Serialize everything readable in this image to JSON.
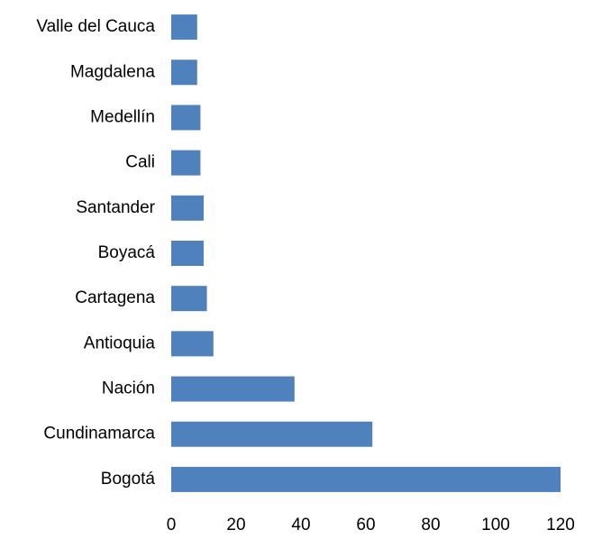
{
  "chart_data": {
    "type": "bar",
    "orientation": "horizontal",
    "categories": [
      "Valle del Cauca",
      "Magdalena",
      "Medellín",
      "Cali",
      "Santander",
      "Boyacá",
      "Cartagena",
      "Antioquia",
      "Nación",
      "Cundinamarca",
      "Bogotá"
    ],
    "values": [
      8,
      8,
      9,
      9,
      10,
      10,
      11,
      13,
      38,
      62,
      120
    ],
    "color": "#4f81bd",
    "xlim": [
      0,
      120
    ],
    "xticks": [
      0,
      20,
      40,
      60,
      80,
      100,
      120
    ],
    "grid": false
  }
}
